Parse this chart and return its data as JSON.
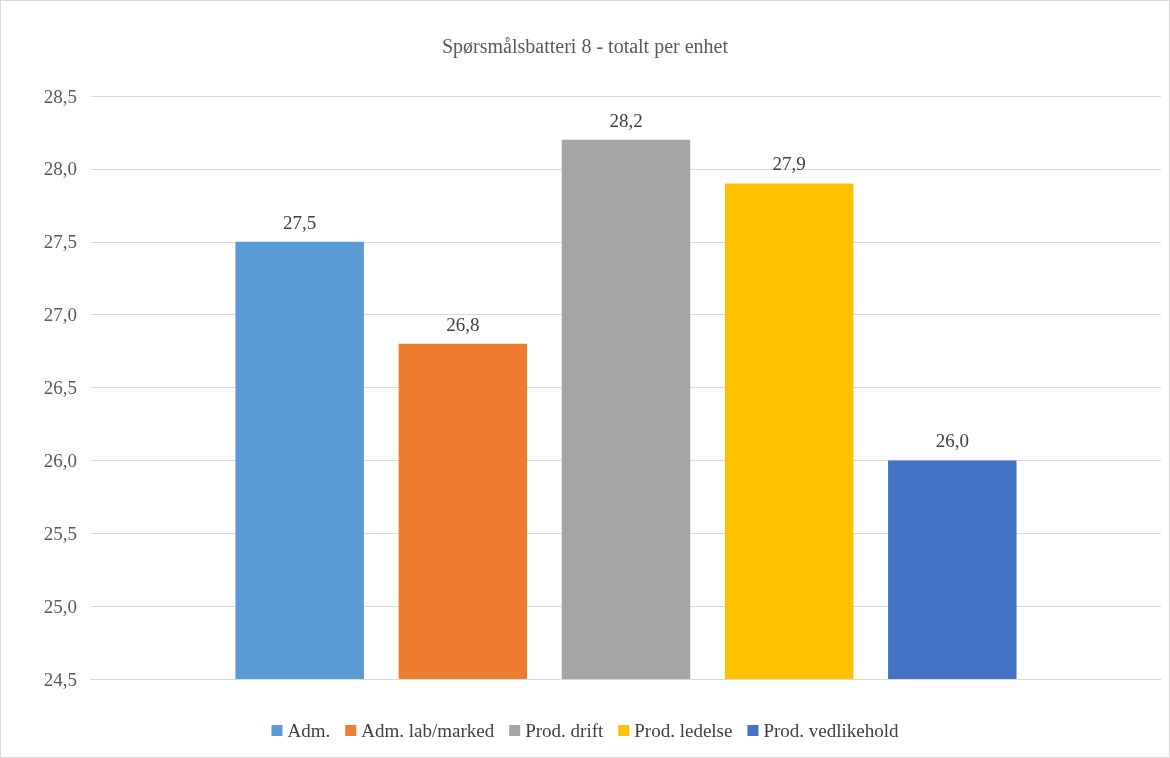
{
  "chart_data": {
    "type": "bar",
    "title": "Spørsmålsbatteri 8 - totalt per enhet",
    "categories": [
      null
    ],
    "series": [
      {
        "name": "Adm.",
        "color": "#5b9bd5",
        "values": [
          27.5
        ],
        "value_labels": [
          "27,5"
        ]
      },
      {
        "name": "Adm. lab/marked",
        "color": "#ed7d31",
        "values": [
          26.8
        ],
        "value_labels": [
          "26,8"
        ]
      },
      {
        "name": "Prod. drift",
        "color": "#a5a5a5",
        "values": [
          28.2
        ],
        "value_labels": [
          "28,2"
        ]
      },
      {
        "name": "Prod. ledelse",
        "color": "#ffc000",
        "values": [
          27.9
        ],
        "value_labels": [
          "27,9"
        ]
      },
      {
        "name": "Prod. vedlikehold",
        "color": "#4472c4",
        "values": [
          26.0
        ],
        "value_labels": [
          "26,0"
        ]
      }
    ],
    "ylim": [
      24.5,
      28.5
    ],
    "yticks": [
      {
        "value": 24.5,
        "label": "24,5"
      },
      {
        "value": 25,
        "label": "25,0"
      },
      {
        "value": 25.5,
        "label": "25,5"
      },
      {
        "value": 26,
        "label": "26,0"
      },
      {
        "value": 26.5,
        "label": "26,5"
      },
      {
        "value": 27,
        "label": "27,0"
      },
      {
        "value": 27.5,
        "label": "27,5"
      },
      {
        "value": 28,
        "label": "28,0"
      },
      {
        "value": 28.5,
        "label": "28,5"
      }
    ],
    "grid": "y",
    "legend": "bottom"
  }
}
